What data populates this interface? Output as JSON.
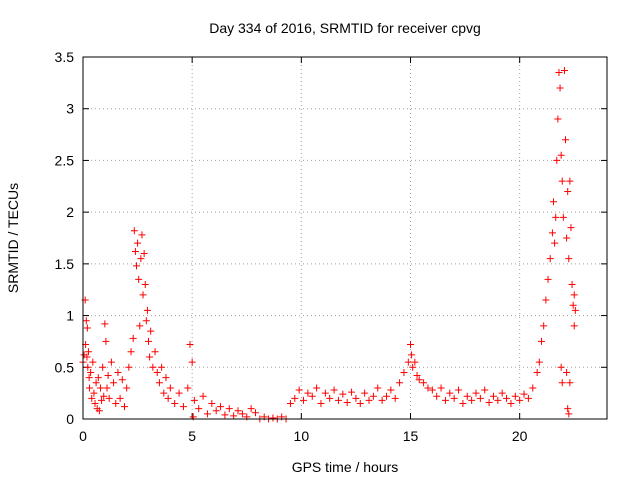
{
  "chart_data": {
    "type": "scatter",
    "title": "Day 334 of 2016, SRMTID for receiver cpvg",
    "xlabel": "GPS time / hours",
    "ylabel": "SRMTID / TECUs",
    "xlim": [
      0,
      24
    ],
    "ylim": [
      0,
      3.5
    ],
    "x_ticks": [
      0,
      5,
      10,
      15,
      20
    ],
    "x_tick_labels": [
      "0",
      "5",
      "10",
      "15",
      "20"
    ],
    "y_ticks": [
      0,
      0.5,
      1,
      1.5,
      2,
      2.5,
      3,
      3.5
    ],
    "y_tick_labels": [
      "0",
      "0.5",
      "1",
      "1.5",
      "2",
      "2.5",
      "3",
      "3.5"
    ],
    "grid": true,
    "marker": "+",
    "color": "#ff0000",
    "series": [
      {
        "name": "SRMTID",
        "points": [
          [
            0.0,
            0.55
          ],
          [
            0.05,
            0.62
          ],
          [
            0.1,
            1.15
          ],
          [
            0.12,
            0.72
          ],
          [
            0.15,
            0.95
          ],
          [
            0.18,
            0.6
          ],
          [
            0.2,
            0.88
          ],
          [
            0.22,
            0.5
          ],
          [
            0.25,
            0.65
          ],
          [
            0.28,
            0.4
          ],
          [
            0.3,
            0.3
          ],
          [
            0.35,
            0.45
          ],
          [
            0.4,
            0.2
          ],
          [
            0.45,
            0.55
          ],
          [
            0.5,
            0.25
          ],
          [
            0.55,
            0.15
          ],
          [
            0.6,
            0.35
          ],
          [
            0.65,
            0.1
          ],
          [
            0.7,
            0.4
          ],
          [
            0.75,
            0.08
          ],
          [
            0.8,
            0.3
          ],
          [
            0.85,
            0.18
          ],
          [
            0.9,
            0.5
          ],
          [
            0.95,
            0.22
          ],
          [
            1.0,
            0.92
          ],
          [
            1.05,
            0.75
          ],
          [
            1.1,
            0.3
          ],
          [
            1.15,
            0.42
          ],
          [
            1.2,
            0.2
          ],
          [
            1.3,
            0.55
          ],
          [
            1.4,
            0.35
          ],
          [
            1.5,
            0.15
          ],
          [
            1.6,
            0.45
          ],
          [
            1.7,
            0.2
          ],
          [
            1.8,
            0.38
          ],
          [
            1.9,
            0.12
          ],
          [
            2.0,
            0.3
          ],
          [
            2.1,
            0.5
          ],
          [
            2.2,
            0.65
          ],
          [
            2.3,
            0.78
          ],
          [
            2.35,
            1.82
          ],
          [
            2.4,
            1.62
          ],
          [
            2.45,
            1.48
          ],
          [
            2.5,
            1.7
          ],
          [
            2.55,
            1.35
          ],
          [
            2.6,
            0.9
          ],
          [
            2.65,
            1.55
          ],
          [
            2.7,
            1.78
          ],
          [
            2.75,
            1.2
          ],
          [
            2.8,
            1.6
          ],
          [
            2.85,
            1.3
          ],
          [
            2.9,
            0.95
          ],
          [
            2.95,
            1.05
          ],
          [
            3.0,
            0.75
          ],
          [
            3.05,
            0.6
          ],
          [
            3.1,
            0.85
          ],
          [
            3.2,
            0.5
          ],
          [
            3.3,
            0.65
          ],
          [
            3.4,
            0.45
          ],
          [
            3.5,
            0.35
          ],
          [
            3.6,
            0.5
          ],
          [
            3.7,
            0.25
          ],
          [
            3.8,
            0.4
          ],
          [
            3.9,
            0.2
          ],
          [
            4.0,
            0.3
          ],
          [
            4.2,
            0.15
          ],
          [
            4.4,
            0.25
          ],
          [
            4.6,
            0.12
          ],
          [
            4.8,
            0.3
          ],
          [
            4.9,
            0.72
          ],
          [
            5.0,
            0.55
          ],
          [
            5.05,
            0.02
          ],
          [
            5.1,
            0.18
          ],
          [
            5.3,
            0.1
          ],
          [
            5.5,
            0.22
          ],
          [
            5.7,
            0.05
          ],
          [
            5.9,
            0.15
          ],
          [
            6.1,
            0.08
          ],
          [
            6.3,
            0.12
          ],
          [
            6.5,
            0.04
          ],
          [
            6.7,
            0.1
          ],
          [
            6.9,
            0.03
          ],
          [
            7.1,
            0.08
          ],
          [
            7.3,
            0.05
          ],
          [
            7.5,
            0.02
          ],
          [
            7.7,
            0.1
          ],
          [
            7.9,
            0.06
          ],
          [
            8.1,
            0.0
          ],
          [
            8.3,
            0.02
          ],
          [
            8.5,
            0.0
          ],
          [
            8.7,
            0.01
          ],
          [
            8.9,
            0.0
          ],
          [
            9.1,
            0.02
          ],
          [
            9.3,
            0.0
          ],
          [
            9.5,
            0.15
          ],
          [
            9.7,
            0.2
          ],
          [
            9.9,
            0.28
          ],
          [
            10.1,
            0.18
          ],
          [
            10.3,
            0.25
          ],
          [
            10.5,
            0.22
          ],
          [
            10.7,
            0.3
          ],
          [
            10.9,
            0.15
          ],
          [
            11.1,
            0.25
          ],
          [
            11.3,
            0.2
          ],
          [
            11.5,
            0.28
          ],
          [
            11.7,
            0.18
          ],
          [
            11.9,
            0.24
          ],
          [
            12.1,
            0.16
          ],
          [
            12.3,
            0.26
          ],
          [
            12.5,
            0.2
          ],
          [
            12.7,
            0.15
          ],
          [
            12.9,
            0.25
          ],
          [
            13.1,
            0.18
          ],
          [
            13.3,
            0.22
          ],
          [
            13.5,
            0.3
          ],
          [
            13.7,
            0.18
          ],
          [
            13.9,
            0.22
          ],
          [
            14.1,
            0.28
          ],
          [
            14.3,
            0.2
          ],
          [
            14.5,
            0.35
          ],
          [
            14.7,
            0.45
          ],
          [
            14.9,
            0.55
          ],
          [
            15.0,
            0.72
          ],
          [
            15.05,
            0.62
          ],
          [
            15.1,
            0.5
          ],
          [
            15.2,
            0.55
          ],
          [
            15.3,
            0.42
          ],
          [
            15.4,
            0.38
          ],
          [
            15.6,
            0.35
          ],
          [
            15.8,
            0.3
          ],
          [
            16.0,
            0.28
          ],
          [
            16.2,
            0.22
          ],
          [
            16.4,
            0.3
          ],
          [
            16.6,
            0.18
          ],
          [
            16.8,
            0.25
          ],
          [
            17.0,
            0.2
          ],
          [
            17.2,
            0.28
          ],
          [
            17.4,
            0.15
          ],
          [
            17.6,
            0.22
          ],
          [
            17.8,
            0.18
          ],
          [
            18.0,
            0.25
          ],
          [
            18.2,
            0.2
          ],
          [
            18.4,
            0.28
          ],
          [
            18.6,
            0.16
          ],
          [
            18.8,
            0.22
          ],
          [
            19.0,
            0.18
          ],
          [
            19.2,
            0.25
          ],
          [
            19.4,
            0.2
          ],
          [
            19.6,
            0.15
          ],
          [
            19.8,
            0.22
          ],
          [
            20.0,
            0.18
          ],
          [
            20.2,
            0.24
          ],
          [
            20.4,
            0.2
          ],
          [
            20.6,
            0.3
          ],
          [
            20.8,
            0.45
          ],
          [
            20.9,
            0.55
          ],
          [
            21.0,
            0.75
          ],
          [
            21.1,
            0.9
          ],
          [
            21.2,
            1.15
          ],
          [
            21.3,
            1.35
          ],
          [
            21.4,
            1.55
          ],
          [
            21.5,
            1.8
          ],
          [
            21.55,
            2.1
          ],
          [
            21.6,
            1.7
          ],
          [
            21.65,
            1.95
          ],
          [
            21.7,
            2.5
          ],
          [
            21.75,
            2.9
          ],
          [
            21.8,
            3.35
          ],
          [
            21.85,
            3.2
          ],
          [
            21.9,
            2.55
          ],
          [
            21.95,
            2.3
          ],
          [
            22.0,
            1.95
          ],
          [
            22.05,
            3.37
          ],
          [
            22.1,
            2.7
          ],
          [
            22.15,
            1.75
          ],
          [
            22.2,
            2.2
          ],
          [
            22.25,
            1.55
          ],
          [
            22.3,
            2.3
          ],
          [
            22.35,
            1.85
          ],
          [
            22.4,
            1.3
          ],
          [
            22.45,
            1.1
          ],
          [
            22.5,
            0.9
          ],
          [
            22.15,
            0.45
          ],
          [
            22.2,
            0.1
          ],
          [
            22.25,
            0.05
          ],
          [
            22.3,
            0.35
          ],
          [
            21.95,
            0.35
          ],
          [
            21.9,
            0.5
          ],
          [
            22.5,
            1.2
          ],
          [
            22.55,
            1.05
          ]
        ]
      }
    ]
  }
}
